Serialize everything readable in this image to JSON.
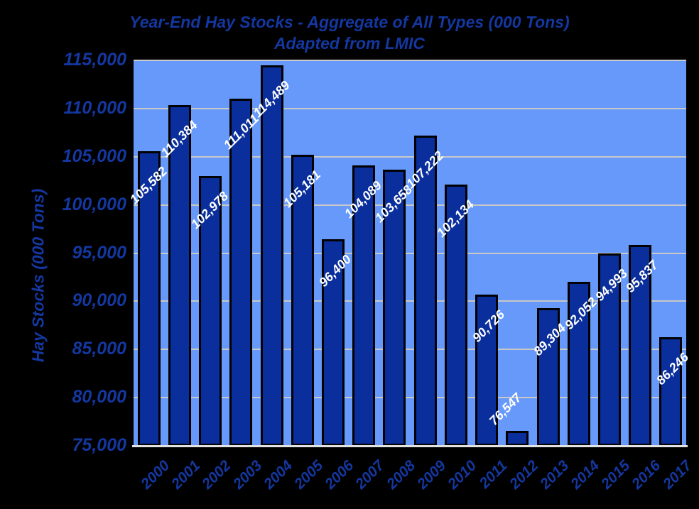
{
  "header": {
    "title": "Year-End Hay Stocks - Aggregate of All Types (000 Tons)",
    "subtitle": "Adapted from LMIC"
  },
  "colors": {
    "background": "#000000",
    "plot_background": "#6699FA",
    "bar_fill": "#0A2F9C",
    "bar_border": "#000000",
    "gridline": "#C8C8C8",
    "axis_line": "#E2E2E2",
    "axis_text": "#1437A0",
    "bar_label_text": "#FFFFFF"
  },
  "chart_data": {
    "type": "bar",
    "title": "Year-End Hay Stocks - Aggregate of All Types (000 Tons)",
    "subtitle": "Adapted from LMIC",
    "xlabel": "",
    "ylabel": "Hay Stocks (000 Tons)",
    "categories": [
      "2000",
      "2001",
      "2002",
      "2003",
      "2004",
      "2005",
      "2006",
      "2007",
      "2008",
      "2009",
      "2010",
      "2011",
      "2012",
      "2013",
      "2014",
      "2015",
      "2016",
      "2017"
    ],
    "values": [
      105582,
      110384,
      102978,
      111011,
      114489,
      105181,
      96400,
      104089,
      103658,
      107222,
      102134,
      90726,
      76547,
      89304,
      92052,
      94993,
      95837,
      86246
    ],
    "value_labels": [
      "105,582",
      "110,384",
      "102,978",
      "111,011",
      "114,489",
      "105,181",
      "96,400",
      "104,089",
      "103,658",
      "107,222",
      "102,134",
      "90,726",
      "76,547",
      "89,304",
      "92,052",
      "94,993",
      "95,837",
      "86,246"
    ],
    "ylim": [
      75000,
      115000
    ],
    "ytick_interval": 5000,
    "ytick_labels": [
      "75,000",
      "80,000",
      "85,000",
      "90,000",
      "95,000",
      "100,000",
      "105,000",
      "110,000",
      "115,000"
    ],
    "grid": true,
    "legend": "none",
    "data_label_style": "white bold italic, rotated 45 degrees, inside end of bar"
  }
}
